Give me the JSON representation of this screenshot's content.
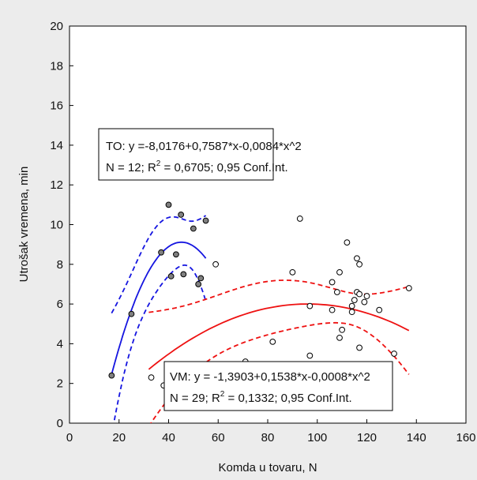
{
  "chart_data": {
    "type": "scatter",
    "title": "",
    "xlabel": "Komda u tovaru, N",
    "ylabel": "Utrošak vremena, min",
    "xlim": [
      0,
      160
    ],
    "ylim": [
      0,
      20
    ],
    "x_ticks": [
      0,
      20,
      40,
      60,
      80,
      100,
      120,
      140,
      160
    ],
    "y_ticks": [
      0,
      2,
      4,
      6,
      8,
      10,
      12,
      14,
      16,
      18,
      20
    ],
    "grid": false,
    "series": [
      {
        "key": "TO",
        "marker": "filled-circle",
        "color": "#1515e0",
        "fit_x_range": [
          17,
          55
        ],
        "ci_x_range": [
          17,
          55
        ],
        "coefficients": [
          -8.0176,
          0.7587,
          -0.0084
        ],
        "points": [
          [
            17,
            2.4
          ],
          [
            25,
            5.5
          ],
          [
            37,
            8.6
          ],
          [
            40,
            11.0
          ],
          [
            41,
            7.4
          ],
          [
            43,
            8.5
          ],
          [
            45,
            10.5
          ],
          [
            46,
            7.5
          ],
          [
            50,
            9.8
          ],
          [
            52,
            7.0
          ],
          [
            53,
            7.3
          ],
          [
            55,
            10.2
          ]
        ],
        "equation": "TO: y =-8,0176+0,7587*x-0,0084*x^2",
        "stats_prefix": "N = 12; R",
        "stats_sup": "2",
        "stats_suffix": " = 0,6705; 0,95 Conf.Int."
      },
      {
        "key": "VM",
        "marker": "open-circle",
        "color": "#ee1111",
        "fit_x_range": [
          32,
          137
        ],
        "ci_x_range": [
          32,
          137
        ],
        "coefficients": [
          -1.3903,
          0.1538,
          -0.0008
        ],
        "points": [
          [
            33,
            2.3
          ],
          [
            59,
            8.0
          ],
          [
            71,
            3.1
          ],
          [
            82,
            4.1
          ],
          [
            90,
            7.6
          ],
          [
            93,
            10.3
          ],
          [
            97,
            3.4
          ],
          [
            97,
            5.9
          ],
          [
            106,
            5.7
          ],
          [
            106,
            7.1
          ],
          [
            108,
            6.6
          ],
          [
            109,
            7.6
          ],
          [
            109,
            4.3
          ],
          [
            110,
            4.7
          ],
          [
            112,
            9.1
          ],
          [
            114,
            5.6
          ],
          [
            114,
            5.9
          ],
          [
            115,
            6.2
          ],
          [
            116,
            6.6
          ],
          [
            116,
            8.3
          ],
          [
            117,
            6.5
          ],
          [
            117,
            8.0
          ],
          [
            117,
            3.8
          ],
          [
            119,
            6.1
          ],
          [
            120,
            6.4
          ],
          [
            125,
            5.7
          ],
          [
            131,
            3.5
          ],
          [
            137,
            6.8
          ],
          [
            38,
            1.9
          ]
        ],
        "equation": "VM: y = -1,3903+0,1538*x-0,0008*x^2",
        "stats_prefix": "N = 29; R",
        "stats_sup": "2",
        "stats_suffix": " = 0,1332; 0,95 Conf.Int."
      }
    ]
  }
}
